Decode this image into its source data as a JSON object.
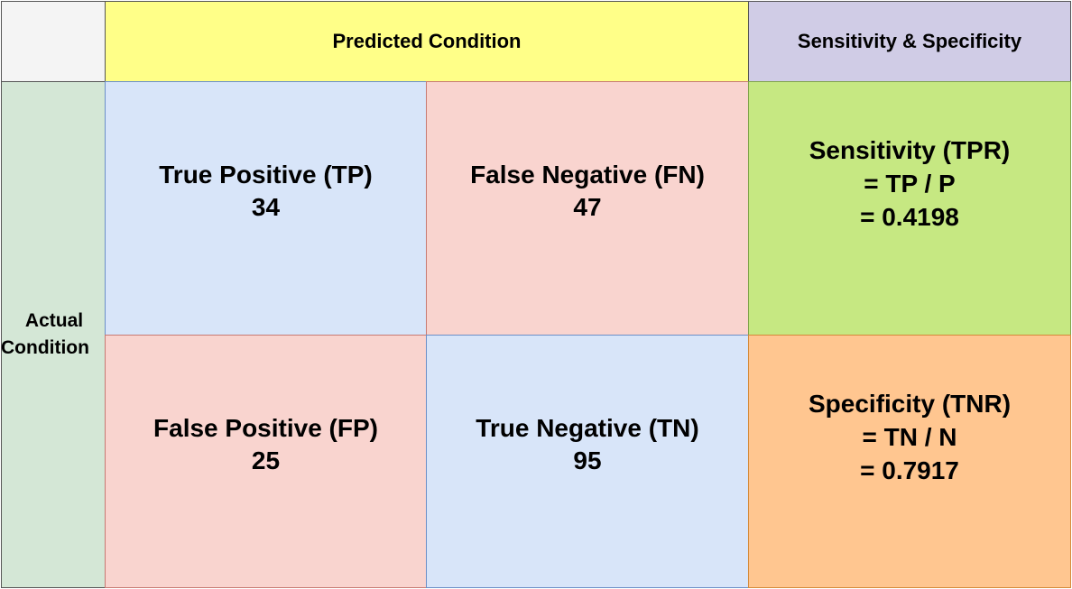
{
  "header": {
    "predicted": "Predicted Condition",
    "sens_spec": "Sensitivity & Specificity"
  },
  "actual": {
    "line1": "Actual",
    "line2": "Condition"
  },
  "matrix": {
    "tp": {
      "label": "True Positive (TP)",
      "value": "34"
    },
    "fn": {
      "label": "False Negative (FN)",
      "value": "47"
    },
    "fp": {
      "label": "False Positive (FP)",
      "value": "25"
    },
    "tn": {
      "label": "True Negative (TN)",
      "value": "95"
    }
  },
  "metrics": {
    "sensitivity": {
      "label": "Sensitivity (TPR)",
      "formula": "= TP / P",
      "value": "= 0.4198"
    },
    "specificity": {
      "label": "Specificity (TNR)",
      "formula": "= TN / N",
      "value": "= 0.7917"
    }
  },
  "colors": {
    "predicted_header": "#ffff88",
    "sens_spec_header": "#d0cce6",
    "actual_label": "#d4e7d6",
    "true_cell": "#d8e5f9",
    "false_cell": "#f9d4cf",
    "sensitivity": "#c6e882",
    "specificity": "#ffc690"
  }
}
